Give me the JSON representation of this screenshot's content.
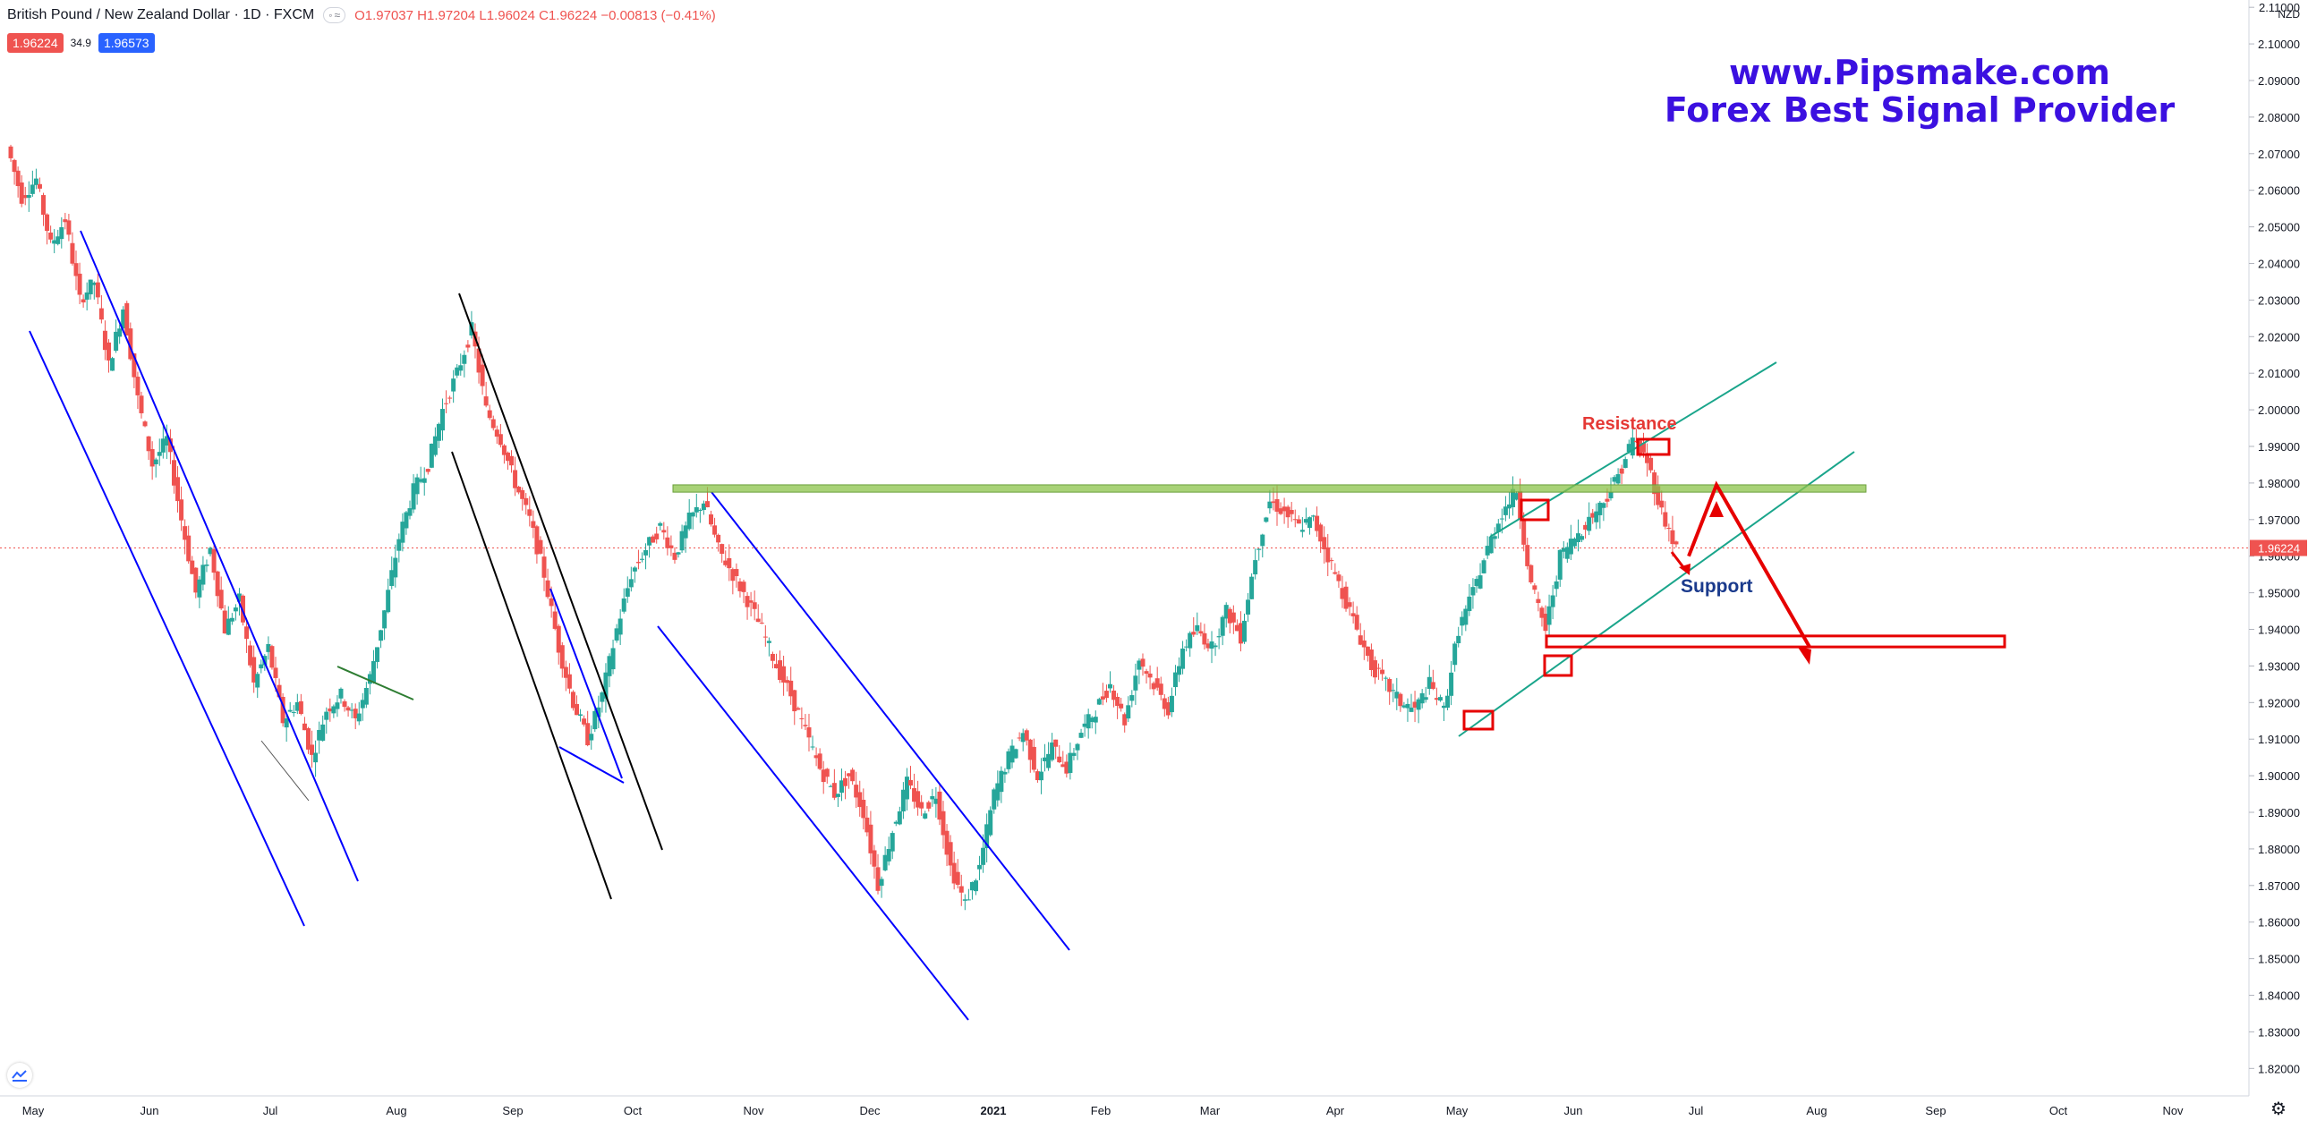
{
  "header": {
    "symbol": "British Pound / New Zealand Dollar · 1D · FXCM",
    "ohlc": "O1.97037 H1.97204 L1.96024 C1.96224 −0.00813 (−0.41%)",
    "sell_price": "1.96224",
    "spread": "34.9",
    "buy_price": "1.96573"
  },
  "watermark": {
    "line1": "www.Pipsmake.com",
    "line2": "Forex Best Signal Provider"
  },
  "price_axis": {
    "currency": "NZD",
    "last_price_label": "1.96224",
    "last_price_color": "#ef5350"
  },
  "annotations": {
    "resistance_label": "Resistance",
    "support_label": "Support"
  },
  "colors": {
    "up": "#26a69a",
    "down": "#ef5350",
    "channel_blue": "#0000ff",
    "channel_black": "#000000",
    "channel_teal": "#1aa58b",
    "zone_green": "#8bc34a",
    "arrow_red": "#e60000"
  },
  "chart_data": {
    "type": "candlestick",
    "instrument": "GBP/NZD",
    "timeframe": "1D",
    "xticks": [
      "May",
      "Jun",
      "Jul",
      "Aug",
      "Sep",
      "Oct",
      "Nov",
      "Dec",
      "2021",
      "Feb",
      "Mar",
      "Apr",
      "May",
      "Jun",
      "Jul",
      "Aug",
      "Sep",
      "Oct",
      "Nov"
    ],
    "ylim": [
      1.8125,
      2.112
    ],
    "yticks": [
      "2.11000",
      "2.10000",
      "2.09000",
      "2.08000",
      "2.07000",
      "2.06000",
      "2.05000",
      "2.04000",
      "2.03000",
      "2.02000",
      "2.01000",
      "2.00000",
      "1.99000",
      "1.98000",
      "1.97000",
      "1.96000",
      "1.95000",
      "1.94000",
      "1.93000",
      "1.92000",
      "1.91000",
      "1.90000",
      "1.89000",
      "1.88000",
      "1.87000",
      "1.86000",
      "1.85000",
      "1.84000",
      "1.83000",
      "1.82000"
    ],
    "close_path": [
      [
        0,
        2.072
      ],
      [
        1,
        2.058
      ],
      [
        2,
        2.063
      ],
      [
        3,
        2.045
      ],
      [
        4,
        2.052
      ],
      [
        5,
        2.03
      ],
      [
        6,
        2.035
      ],
      [
        7,
        2.012
      ],
      [
        8,
        2.028
      ],
      [
        9,
        2.003
      ],
      [
        10,
        1.985
      ],
      [
        11,
        1.992
      ],
      [
        12,
        1.97
      ],
      [
        13,
        1.95
      ],
      [
        14,
        1.962
      ],
      [
        15,
        1.94
      ],
      [
        16,
        1.948
      ],
      [
        17,
        1.925
      ],
      [
        18,
        1.935
      ],
      [
        19,
        1.915
      ],
      [
        20,
        1.92
      ],
      [
        21,
        1.905
      ],
      [
        22,
        1.918
      ],
      [
        23,
        1.922
      ],
      [
        24,
        1.915
      ],
      [
        25,
        1.927
      ],
      [
        26,
        1.945
      ],
      [
        27,
        1.965
      ],
      [
        28,
        1.978
      ],
      [
        29,
        1.985
      ],
      [
        30,
        2.0
      ],
      [
        31,
        2.01
      ],
      [
        32,
        2.022
      ],
      [
        33,
        2.0
      ],
      [
        34,
        1.992
      ],
      [
        35,
        1.98
      ],
      [
        36,
        1.97
      ],
      [
        37,
        1.955
      ],
      [
        38,
        1.935
      ],
      [
        39,
        1.92
      ],
      [
        40,
        1.91
      ],
      [
        41,
        1.922
      ],
      [
        42,
        1.94
      ],
      [
        43,
        1.955
      ],
      [
        44,
        1.962
      ],
      [
        45,
        1.968
      ],
      [
        46,
        1.96
      ],
      [
        47,
        1.97
      ],
      [
        48,
        1.975
      ],
      [
        49,
        1.962
      ],
      [
        50,
        1.955
      ],
      [
        51,
        1.948
      ],
      [
        52,
        1.94
      ],
      [
        53,
        1.93
      ],
      [
        54,
        1.922
      ],
      [
        55,
        1.912
      ],
      [
        56,
        1.902
      ],
      [
        57,
        1.895
      ],
      [
        58,
        1.9
      ],
      [
        59,
        1.89
      ],
      [
        60,
        1.87
      ],
      [
        61,
        1.885
      ],
      [
        62,
        1.898
      ],
      [
        63,
        1.89
      ],
      [
        64,
        1.895
      ],
      [
        65,
        1.875
      ],
      [
        66,
        1.865
      ],
      [
        67,
        1.875
      ],
      [
        68,
        1.895
      ],
      [
        69,
        1.905
      ],
      [
        70,
        1.912
      ],
      [
        71,
        1.9
      ],
      [
        72,
        1.908
      ],
      [
        73,
        1.902
      ],
      [
        74,
        1.912
      ],
      [
        75,
        1.918
      ],
      [
        76,
        1.925
      ],
      [
        77,
        1.915
      ],
      [
        78,
        1.932
      ],
      [
        79,
        1.925
      ],
      [
        80,
        1.918
      ],
      [
        81,
        1.935
      ],
      [
        82,
        1.94
      ],
      [
        83,
        1.935
      ],
      [
        84,
        1.945
      ],
      [
        85,
        1.938
      ],
      [
        86,
        1.96
      ],
      [
        87,
        1.975
      ],
      [
        88,
        1.972
      ],
      [
        89,
        1.968
      ],
      [
        90,
        1.97
      ],
      [
        91,
        1.96
      ],
      [
        92,
        1.95
      ],
      [
        93,
        1.94
      ],
      [
        94,
        1.93
      ],
      [
        95,
        1.925
      ],
      [
        96,
        1.92
      ],
      [
        97,
        1.918
      ],
      [
        98,
        1.925
      ],
      [
        99,
        1.918
      ],
      [
        100,
        1.94
      ],
      [
        101,
        1.95
      ],
      [
        102,
        1.962
      ],
      [
        103,
        1.972
      ],
      [
        104,
        1.978
      ],
      [
        105,
        1.952
      ],
      [
        106,
        1.94
      ],
      [
        107,
        1.96
      ],
      [
        108,
        1.965
      ],
      [
        109,
        1.97
      ],
      [
        110,
        1.975
      ],
      [
        111,
        1.982
      ],
      [
        112,
        1.992
      ],
      [
        113,
        1.986
      ],
      [
        114,
        1.972
      ],
      [
        115,
        1.962
      ]
    ],
    "horizontal_zone": {
      "low": 1.9775,
      "high": 1.9795,
      "label": ""
    },
    "support_zone": {
      "low": 1.9352,
      "high": 1.9382
    },
    "projection": [
      1.96,
      1.9795,
      1.9352
    ],
    "last_price": 1.96224
  }
}
